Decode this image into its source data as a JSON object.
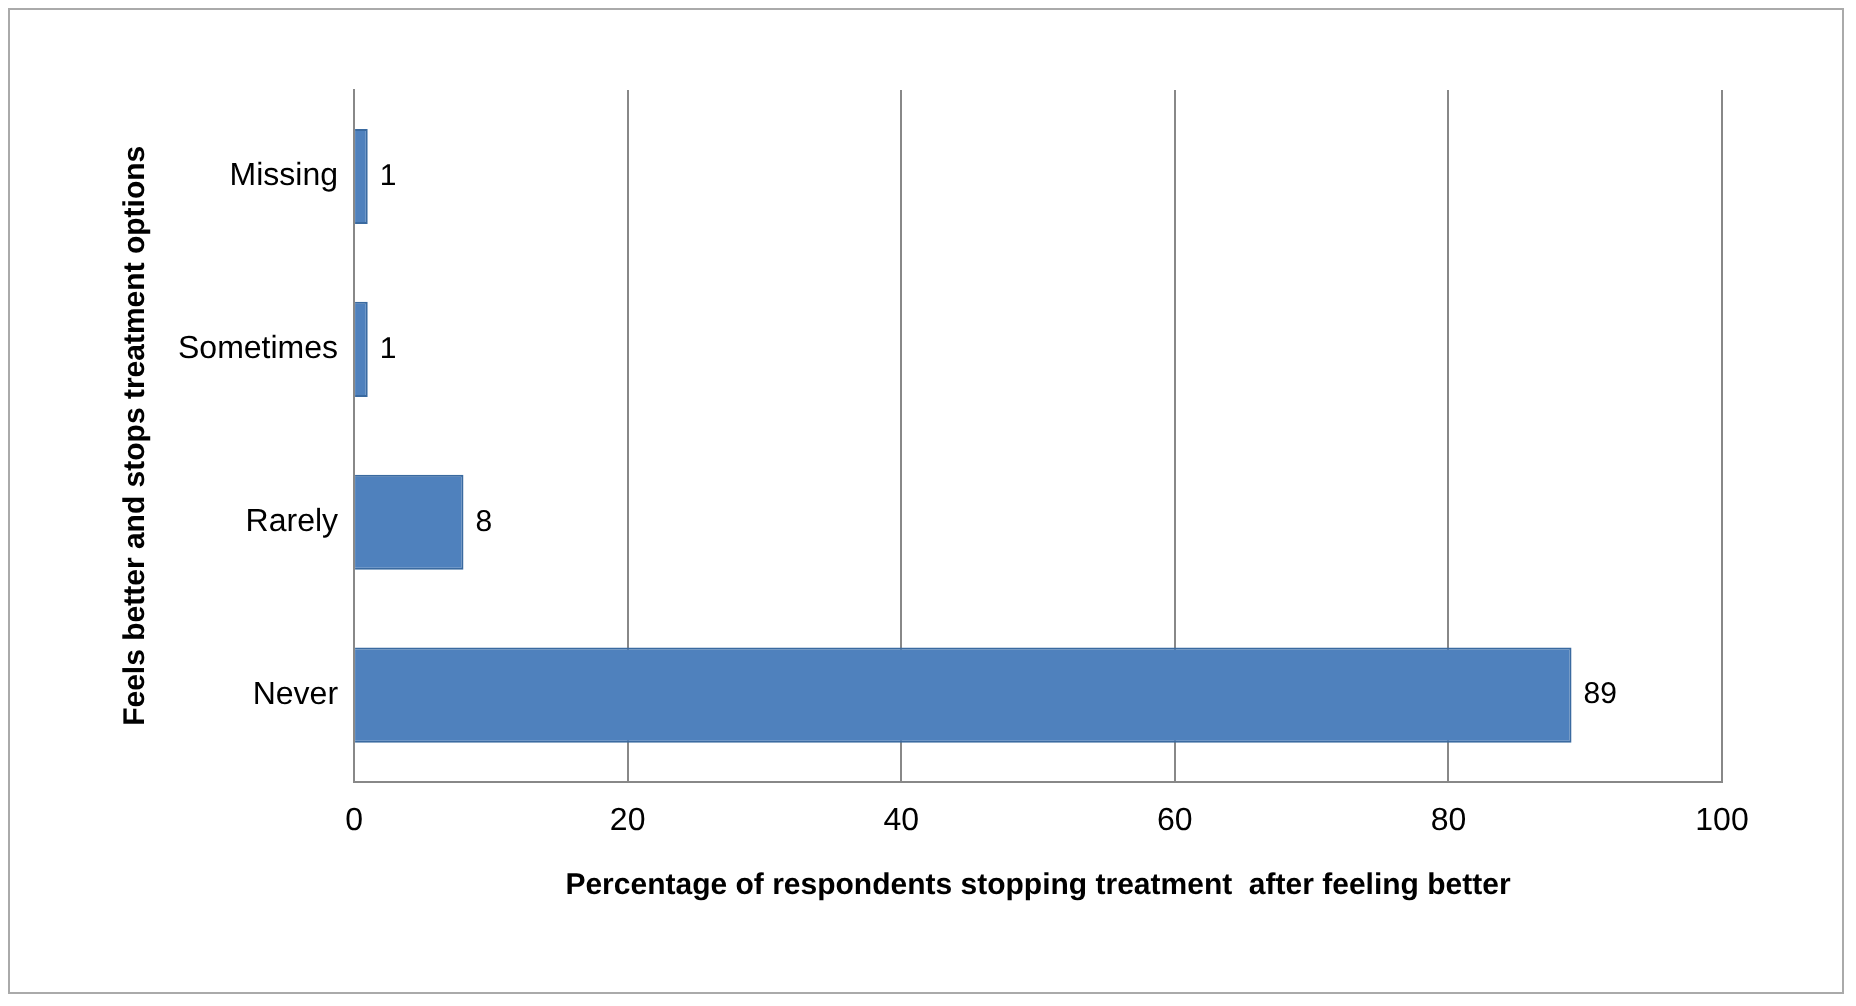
{
  "chart_data": {
    "type": "bar",
    "orientation": "horizontal",
    "categories": [
      "Missing",
      "Sometimes",
      "Rarely",
      "Never"
    ],
    "values": [
      1,
      1,
      8,
      89
    ],
    "color": "#4f81bd",
    "xlim": [
      0,
      100
    ],
    "xticks": [
      0,
      20,
      40,
      60,
      80,
      100
    ],
    "grid": "x",
    "data_labels": true,
    "legend": false,
    "xlabel": "Percentage of respondents stopping treatment  after feeling better",
    "ylabel": "Feels better and stops treatment options"
  }
}
